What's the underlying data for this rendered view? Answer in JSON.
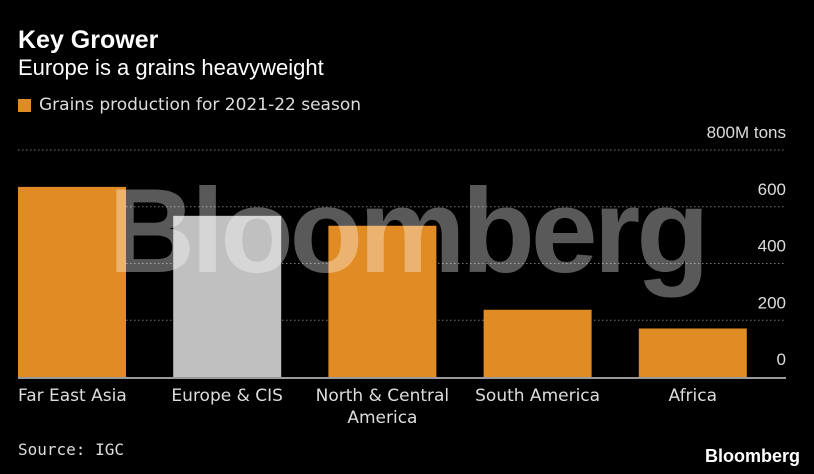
{
  "header": {
    "title": "Key Grower",
    "subtitle": "Europe is a grains heavyweight"
  },
  "footer": {
    "source": "Source: IGC",
    "brand": "Bloomberg"
  },
  "watermark": "Bloomberg",
  "colors": {
    "highlight": "#c0c0c0",
    "bars": "#e08b23",
    "background": "#000000"
  },
  "chart_data": {
    "type": "bar",
    "title": "Key Grower",
    "subtitle": "Europe is a grains heavyweight",
    "legend": {
      "entries": [
        "Grains production for 2021-22 season"
      ],
      "placement": "top-left"
    },
    "categories": [
      "Far East Asia",
      "Europe & CIS",
      "North & Central America",
      "South America",
      "Africa"
    ],
    "series": [
      {
        "name": "Grains production for 2021-22 season",
        "values": [
          670,
          568,
          533,
          237,
          171
        ]
      }
    ],
    "highlighted_category": "Europe & CIS",
    "ylim": [
      0,
      800
    ],
    "yticks": [
      0,
      200,
      400,
      600,
      800
    ],
    "ytick_labels": [
      "0",
      "200",
      "400",
      "600",
      "800M tons"
    ],
    "ylabel": "",
    "xlabel": "",
    "grid": true,
    "yaxis_side": "right"
  }
}
